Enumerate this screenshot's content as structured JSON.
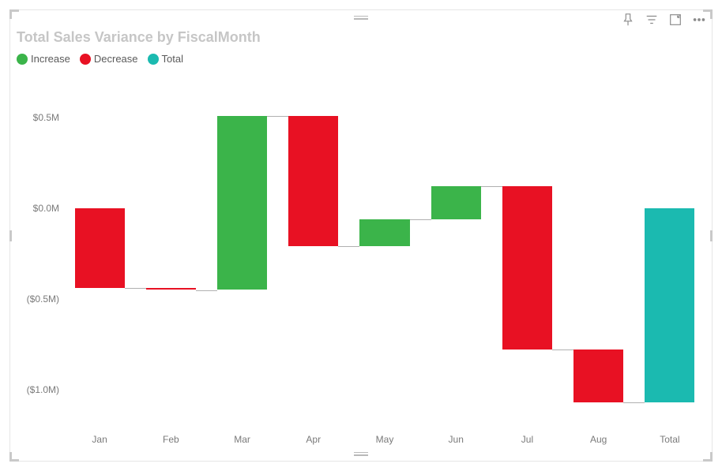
{
  "title": "Total Sales Variance by FiscalMonth",
  "toolbar": {
    "pin": "pin-icon",
    "filter": "filter-icon",
    "focus": "focus-mode-icon",
    "more": "more-options-icon"
  },
  "legend": [
    {
      "label": "Increase",
      "color": "#3bb44a"
    },
    {
      "label": "Decrease",
      "color": "#e81123"
    },
    {
      "label": "Total",
      "color": "#1bbab0"
    }
  ],
  "chart": {
    "type": "waterfall",
    "x_categories": [
      "Jan",
      "Feb",
      "Mar",
      "Apr",
      "May",
      "Jun",
      "Jul",
      "Aug",
      "Total"
    ],
    "y_axis": {
      "min": -1.2,
      "max": 0.7,
      "ticks": [
        {
          "value": 0.5,
          "label": "$0.5M"
        },
        {
          "value": 0.0,
          "label": "$0.0M"
        },
        {
          "value": -0.5,
          "label": "($0.5M)"
        },
        {
          "value": -1.0,
          "label": "($1.0M)"
        }
      ],
      "label_fontsize": 12,
      "label_color": "#7a7a7a"
    },
    "colors": {
      "increase": "#3bb44a",
      "decrease": "#e81123",
      "total": "#1bbab0",
      "connector": "#b0b0b0",
      "background": "#ffffff"
    },
    "bar_width_ratio": 0.7,
    "bars": [
      {
        "category": "Jan",
        "start": 0.0,
        "end": -0.44,
        "kind": "decrease"
      },
      {
        "category": "Feb",
        "start": -0.44,
        "end": -0.45,
        "kind": "decrease"
      },
      {
        "category": "Mar",
        "start": -0.45,
        "end": 0.51,
        "kind": "increase"
      },
      {
        "category": "Apr",
        "start": 0.51,
        "end": -0.21,
        "kind": "decrease"
      },
      {
        "category": "May",
        "start": -0.21,
        "end": -0.06,
        "kind": "increase"
      },
      {
        "category": "Jun",
        "start": -0.06,
        "end": 0.12,
        "kind": "increase"
      },
      {
        "category": "Jul",
        "start": 0.12,
        "end": -0.78,
        "kind": "decrease"
      },
      {
        "category": "Aug",
        "start": -0.78,
        "end": -1.07,
        "kind": "decrease"
      },
      {
        "category": "Total",
        "start": 0.0,
        "end": -1.07,
        "kind": "total"
      }
    ],
    "title_fontsize": 18,
    "title_color": "#c6c6c6",
    "x_label_fontsize": 12,
    "x_label_color": "#7a7a7a"
  }
}
